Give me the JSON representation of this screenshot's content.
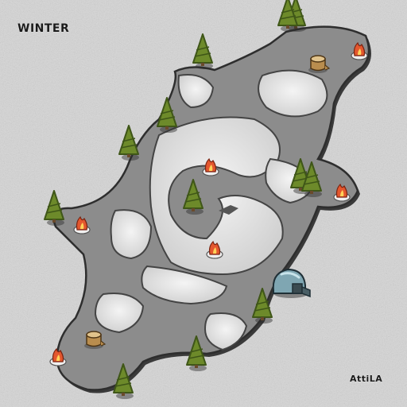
{
  "map": {
    "title": "WINTER",
    "author": "AttiLA",
    "theme": "winter",
    "colors": {
      "snow": "#d9d9d9",
      "ground": "#8a8a8a",
      "ground_shadow": "#3e3e3e",
      "tree_green": "#6d8a2a",
      "tree_dark": "#3f5618",
      "fire": "#e4572e",
      "stump": "#b98d4e",
      "shelter": "#7fa6b2"
    },
    "objects": {
      "trees": 14,
      "campfires": 7,
      "stumps": 2,
      "shelters": 1
    }
  }
}
